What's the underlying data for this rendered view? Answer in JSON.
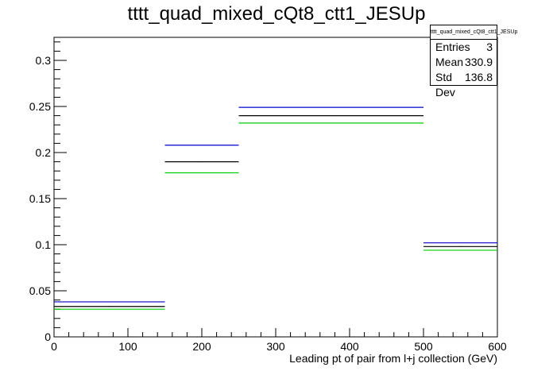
{
  "title": "tttt_quad_mixed_cQt8_ctt1_JESUp",
  "stats": {
    "name": "tttt_quad_mixed_cQt8_ctt1_JESUp",
    "entries_label": "Entries",
    "entries": "3",
    "mean_label": "Mean",
    "mean": "330.9",
    "stddev_label": "Std Dev",
    "stddev": "136.8"
  },
  "chart_data": {
    "type": "histogram",
    "title": "tttt_quad_mixed_cQt8_ctt1_JESUp",
    "xlabel": "Leading pt of pair from l+j collection (GeV)",
    "ylabel": "",
    "xlim": [
      0,
      600
    ],
    "ylim": [
      0,
      0.325
    ],
    "x_ticks": [
      0,
      100,
      200,
      300,
      400,
      500,
      600
    ],
    "y_ticks": [
      0,
      0.05,
      0.1,
      0.15,
      0.2,
      0.25,
      0.3
    ],
    "x_tick_labels": [
      "0",
      "100",
      "200",
      "300",
      "400",
      "500",
      "600"
    ],
    "y_tick_labels": [
      "0",
      "0.05",
      "0.1",
      "0.15",
      "0.2",
      "0.25",
      "0.3"
    ],
    "bins": [
      [
        0,
        150
      ],
      [
        150,
        250
      ],
      [
        250,
        500
      ],
      [
        500,
        600
      ]
    ],
    "series": [
      {
        "color": "#0000cc",
        "values": [
          0.038,
          0.208,
          0.249,
          0.102
        ]
      },
      {
        "color": "#000000",
        "values": [
          0.033,
          0.19,
          0.24,
          0.098
        ]
      },
      {
        "color": "#00cc00",
        "values": [
          0.03,
          0.178,
          0.232,
          0.094
        ]
      }
    ]
  }
}
